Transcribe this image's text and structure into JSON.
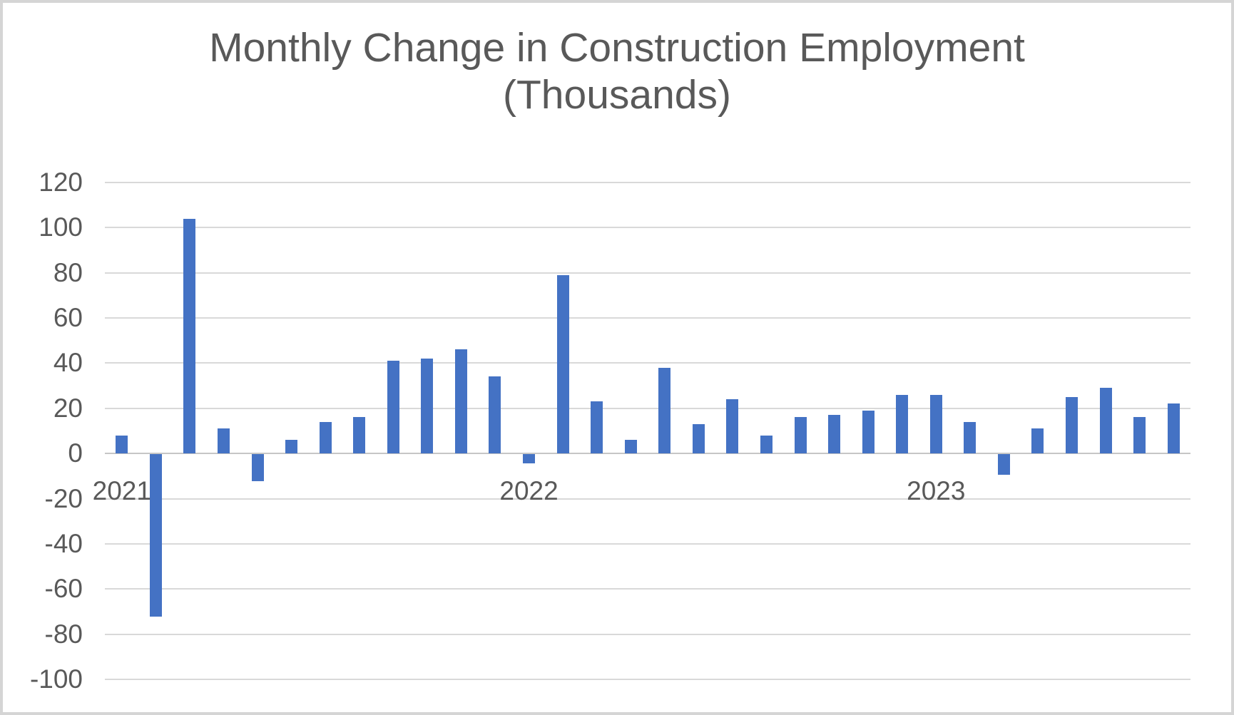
{
  "title": {
    "line1": "Monthly Change in Construction Employment",
    "line2": "(Thousands)"
  },
  "chart_data": {
    "type": "bar",
    "title": "Monthly Change in Construction Employment (Thousands)",
    "xlabel": "",
    "ylabel": "",
    "x": [
      "2021-01",
      "2021-02",
      "2021-03",
      "2021-04",
      "2021-05",
      "2021-06",
      "2021-07",
      "2021-08",
      "2021-09",
      "2021-10",
      "2021-11",
      "2021-12",
      "2022-01",
      "2022-02",
      "2022-03",
      "2022-04",
      "2022-05",
      "2022-06",
      "2022-07",
      "2022-08",
      "2022-09",
      "2022-10",
      "2022-11",
      "2022-12",
      "2023-01",
      "2023-02",
      "2023-03",
      "2023-04",
      "2023-05",
      "2023-06",
      "2023-07",
      "2023-08"
    ],
    "values": [
      8,
      -72,
      104,
      11,
      -12,
      6,
      14,
      16,
      41,
      42,
      46,
      34,
      -4,
      79,
      23,
      6,
      38,
      13,
      24,
      8,
      16,
      17,
      19,
      26,
      26,
      14,
      -9,
      11,
      25,
      29,
      16,
      22
    ],
    "ylim": [
      -100,
      120
    ],
    "ytick_interval": 20,
    "yticks": [
      120,
      100,
      80,
      60,
      40,
      20,
      0,
      -20,
      -40,
      -60,
      -80,
      -100
    ],
    "ytick_labels": [
      "120",
      "100",
      "80",
      "60",
      "40",
      "20",
      "0",
      "-20",
      "-40",
      "-60",
      "-80",
      "-100"
    ],
    "x_year_ticks": [
      {
        "label": "2021",
        "month_index": 0
      },
      {
        "label": "2022",
        "month_index": 12
      },
      {
        "label": "2023",
        "month_index": 24
      }
    ],
    "grid": true,
    "legend": "none",
    "bar_color": "#4472C4"
  },
  "colors": {
    "bar": "#4472C4",
    "gridline": "#D9D9D9",
    "axis_line": "#C6C6C6",
    "text": "#595959",
    "frame_border": "#D5D5D5",
    "background": "#FFFFFF"
  }
}
